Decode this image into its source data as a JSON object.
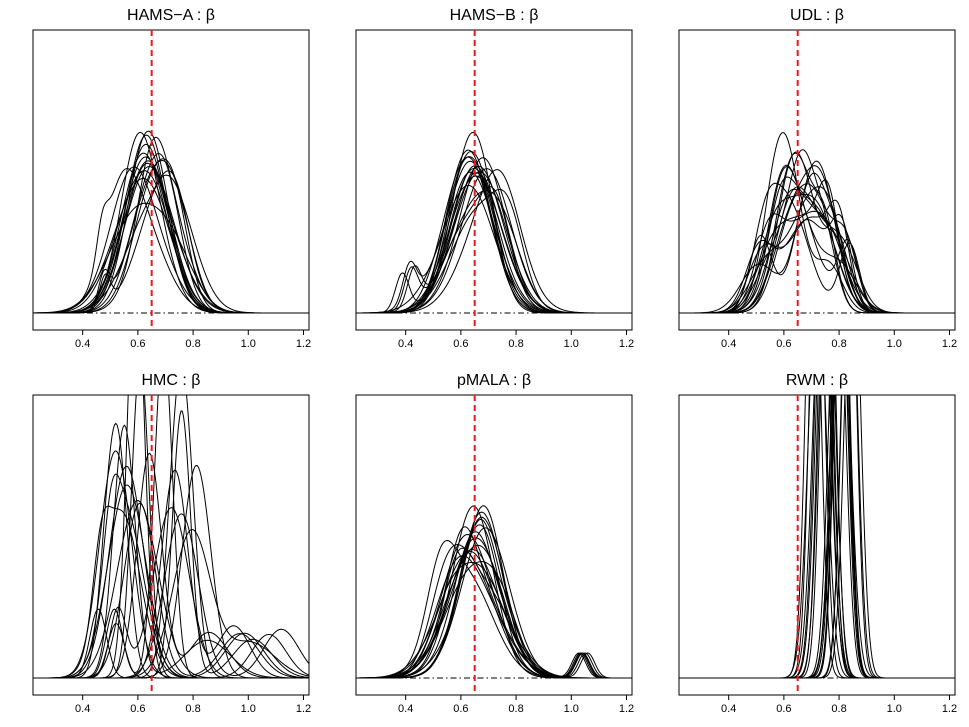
{
  "colors": {
    "reference_line": "#e8181c",
    "curves": "#000000",
    "background": "#ffffff"
  },
  "chart_data": [
    {
      "type": "line",
      "title": "HAMS−A : β",
      "xlabel": "",
      "ylabel": "",
      "xlim": [
        0.22,
        1.22
      ],
      "ylim": [
        0,
        8.5
      ],
      "xticks": [
        0.4,
        0.6,
        0.8,
        1.0,
        1.2
      ],
      "xtick_labels": [
        "0.4",
        "0.6",
        "0.8",
        "1.0",
        "1.2"
      ],
      "reference_x": 0.65,
      "baseline": {
        "x": [
          0.22,
          1.22
        ],
        "y": [
          0,
          0
        ],
        "style": "dotdash"
      },
      "grid": false,
      "curve_count": 20,
      "x_support": [
        0.45,
        1.08
      ],
      "peak_density_range": [
        3.2,
        4.8
      ]
    },
    {
      "type": "line",
      "title": "HAMS−B : β",
      "xlabel": "",
      "ylabel": "",
      "xlim": [
        0.22,
        1.22
      ],
      "ylim": [
        0,
        8.5
      ],
      "xticks": [
        0.4,
        0.6,
        0.8,
        1.0,
        1.2
      ],
      "xtick_labels": [
        "0.4",
        "0.6",
        "0.8",
        "1.0",
        "1.2"
      ],
      "reference_x": 0.65,
      "baseline": {
        "x": [
          0.22,
          1.22
        ],
        "y": [
          0,
          0
        ],
        "style": "dotdash"
      },
      "grid": false,
      "curve_count": 20,
      "x_support": [
        0.35,
        1.02
      ],
      "peak_density_range": [
        3.5,
        5.0
      ]
    },
    {
      "type": "line",
      "title": "UDL : β",
      "xlabel": "",
      "ylabel": "",
      "xlim": [
        0.22,
        1.22
      ],
      "ylim": [
        0,
        8.5
      ],
      "xticks": [
        0.4,
        0.6,
        0.8,
        1.0,
        1.2
      ],
      "xtick_labels": [
        "0.4",
        "0.6",
        "0.8",
        "1.0",
        "1.2"
      ],
      "reference_x": 0.65,
      "baseline": {
        "x": [
          0.22,
          1.22
        ],
        "y": [
          0,
          0
        ],
        "style": "dotdash"
      },
      "grid": false,
      "curve_count": 20,
      "x_support": [
        0.38,
        1.05
      ],
      "peak_density_range": [
        3.0,
        6.5
      ]
    },
    {
      "type": "line",
      "title": "HMC : β",
      "xlabel": "",
      "ylabel": "",
      "xlim": [
        0.22,
        1.22
      ],
      "ylim": [
        0,
        8.5
      ],
      "xticks": [
        0.4,
        0.6,
        0.8,
        1.0,
        1.2
      ],
      "xtick_labels": [
        "0.4",
        "0.6",
        "0.8",
        "1.0",
        "1.2"
      ],
      "reference_x": 0.65,
      "baseline": {
        "x": [
          0.22,
          1.22
        ],
        "y": [
          0,
          0
        ],
        "style": "dotdash"
      },
      "grid": false,
      "curve_count": 20,
      "x_support": [
        0.4,
        1.22
      ],
      "peak_density_range": [
        2.5,
        9.5
      ]
    },
    {
      "type": "line",
      "title": "pMALA : β",
      "xlabel": "",
      "ylabel": "",
      "xlim": [
        0.22,
        1.22
      ],
      "ylim": [
        0,
        8.5
      ],
      "xticks": [
        0.4,
        0.6,
        0.8,
        1.0,
        1.2
      ],
      "xtick_labels": [
        "0.4",
        "0.6",
        "0.8",
        "1.0",
        "1.2"
      ],
      "reference_x": 0.65,
      "baseline": {
        "x": [
          0.22,
          1.22
        ],
        "y": [
          0,
          0
        ],
        "style": "dotdash"
      },
      "grid": false,
      "curve_count": 20,
      "x_support": [
        0.38,
        1.08
      ],
      "peak_density_range": [
        3.5,
        4.8
      ]
    },
    {
      "type": "line",
      "title": "RWM : β",
      "xlabel": "",
      "ylabel": "",
      "xlim": [
        0.22,
        1.22
      ],
      "ylim": [
        0,
        8.5
      ],
      "xticks": [
        0.4,
        0.6,
        0.8,
        1.0,
        1.2
      ],
      "xtick_labels": [
        "0.4",
        "0.6",
        "0.8",
        "1.0",
        "1.2"
      ],
      "reference_x": 0.65,
      "baseline": {
        "x": [
          0.22,
          1.22
        ],
        "y": [
          0,
          0
        ],
        "style": "dotdash"
      },
      "grid": false,
      "curve_count": 20,
      "x_support": [
        0.62,
        0.95
      ],
      "peak_density_range": [
        12,
        20
      ]
    }
  ]
}
